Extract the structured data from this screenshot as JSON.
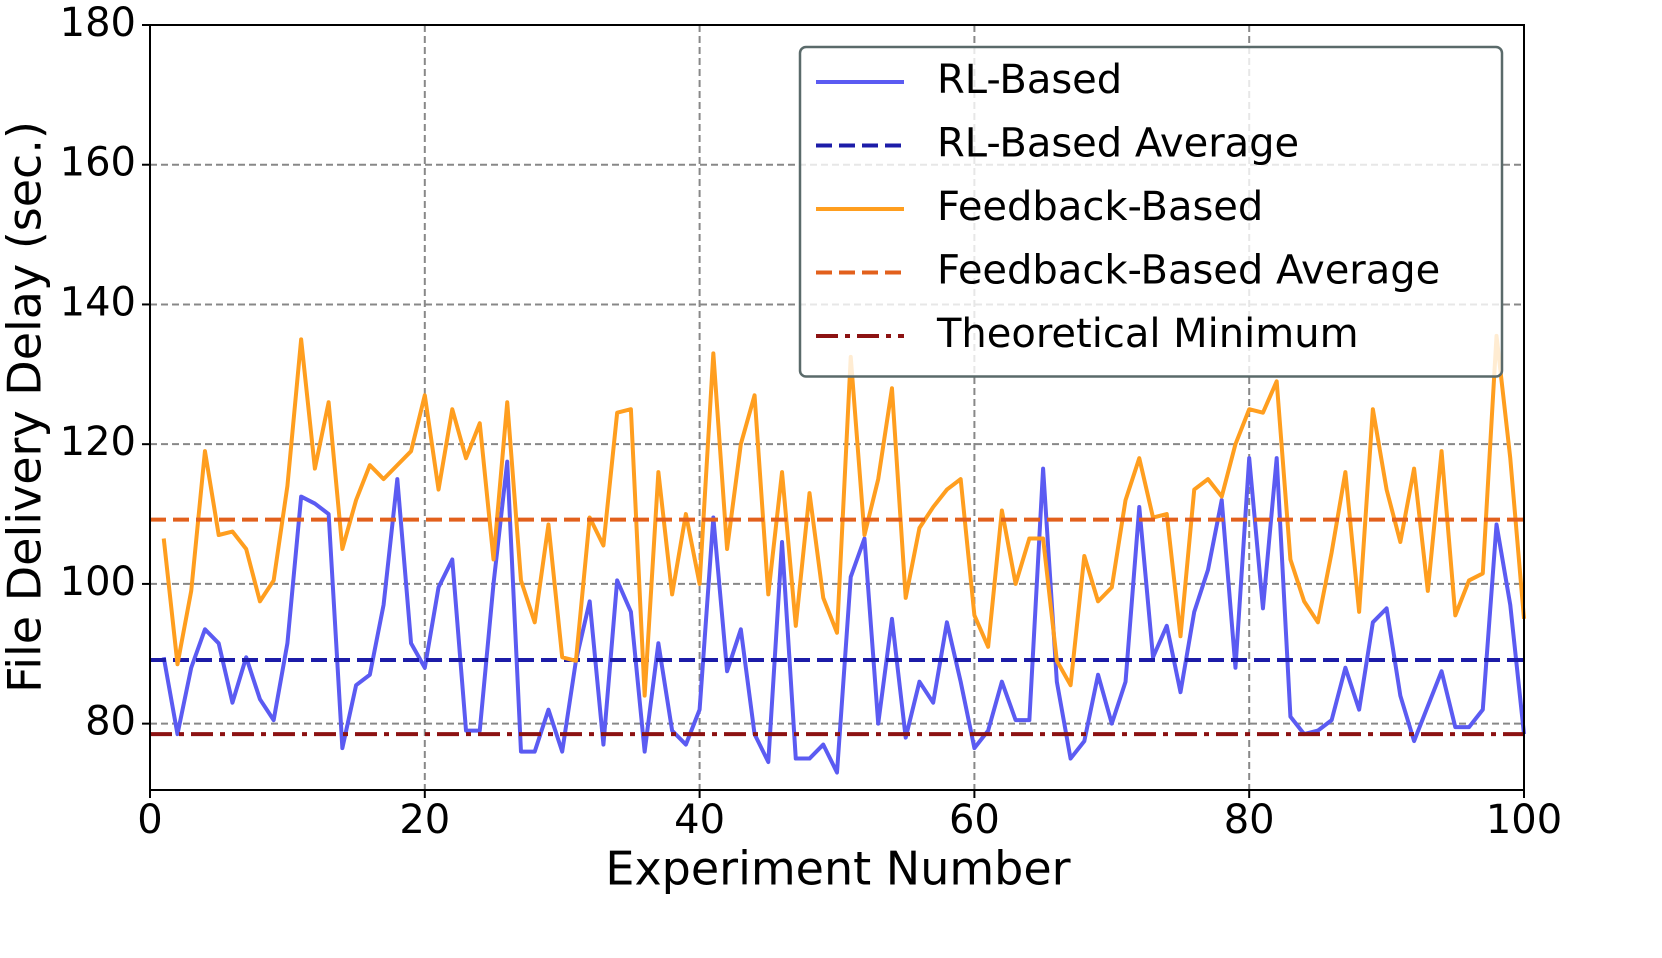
{
  "chart_data": {
    "type": "line",
    "xlabel": "Experiment Number",
    "ylabel": "File Delivery Delay (sec.)",
    "xlim": [
      0,
      100
    ],
    "ylim": [
      70.5,
      180
    ],
    "xticks": [
      0,
      20,
      40,
      60,
      80,
      100
    ],
    "yticks": [
      80,
      100,
      120,
      140,
      160,
      180
    ],
    "grid": true,
    "legend": "upper right",
    "x": [
      1,
      2,
      3,
      4,
      5,
      6,
      7,
      8,
      9,
      10,
      11,
      12,
      13,
      14,
      15,
      16,
      17,
      18,
      19,
      20,
      21,
      22,
      23,
      24,
      25,
      26,
      27,
      28,
      29,
      30,
      31,
      32,
      33,
      34,
      35,
      36,
      37,
      38,
      39,
      40,
      41,
      42,
      43,
      44,
      45,
      46,
      47,
      48,
      49,
      50,
      51,
      52,
      53,
      54,
      55,
      56,
      57,
      58,
      59,
      60,
      61,
      62,
      63,
      64,
      65,
      66,
      67,
      68,
      69,
      70,
      71,
      72,
      73,
      74,
      75,
      76,
      77,
      78,
      79,
      80,
      81,
      82,
      83,
      84,
      85,
      86,
      87,
      88,
      89,
      90,
      91,
      92,
      93,
      94,
      95,
      96,
      97,
      98,
      99,
      100
    ],
    "series": [
      {
        "name": "RL-Based",
        "color": "#5b5bf2",
        "style": "solid",
        "values": [
          89.5,
          78.5,
          88,
          93.5,
          91.5,
          83,
          89.5,
          83.5,
          80.5,
          91.5,
          112.5,
          111.5,
          110,
          76.5,
          85.5,
          87,
          97,
          115,
          91.5,
          88,
          99.5,
          103.5,
          79,
          79,
          100,
          117.5,
          76,
          76,
          82,
          76,
          89,
          97.5,
          77,
          100.5,
          96,
          76,
          91.5,
          79,
          77,
          82,
          109.5,
          87.5,
          93.5,
          78.5,
          74.5,
          106,
          75,
          75,
          77,
          73,
          101,
          106.5,
          80,
          95,
          78,
          86,
          83,
          94.5,
          86,
          76.5,
          79,
          86,
          80.5,
          80.5,
          116.5,
          86,
          75,
          77.5,
          87,
          80,
          86,
          111,
          89.5,
          94,
          84.5,
          96,
          102,
          112,
          88,
          118,
          96.5,
          118,
          81,
          78.5,
          79,
          80.5,
          88,
          82,
          94.5,
          96.5,
          84,
          77.5,
          82.5,
          87.5,
          79.5,
          79.5,
          82,
          108.5,
          97,
          78.5
        ]
      },
      {
        "name": "RL-Based Average",
        "color": "#1c1ca8",
        "style": "dashed",
        "value": 89.1
      },
      {
        "name": "Feedback-Based",
        "color": "#ff9e1f",
        "style": "solid",
        "values": [
          106.5,
          88.5,
          99,
          119,
          107,
          107.5,
          105,
          97.5,
          100.5,
          114,
          135,
          116.5,
          126,
          105,
          112,
          117,
          115,
          117,
          119,
          127,
          113.5,
          125,
          118,
          123,
          103.5,
          126,
          100.5,
          94.5,
          108.5,
          89.5,
          89,
          109.5,
          105.5,
          124.5,
          125,
          84,
          116,
          98.5,
          110,
          100,
          133,
          105,
          120,
          127,
          98.5,
          116,
          94,
          113,
          98,
          93,
          132.5,
          107,
          115,
          128,
          98,
          108,
          111,
          113.5,
          115,
          95.5,
          91,
          110.5,
          100,
          106.5,
          106.5,
          89,
          85.5,
          104,
          97.5,
          99.5,
          112,
          118,
          109.5,
          110,
          92.5,
          113.5,
          115,
          112.5,
          120,
          125,
          124.5,
          129,
          103.5,
          97.5,
          94.5,
          104.5,
          116,
          96,
          125,
          113.5,
          106,
          116.5,
          99,
          119,
          95.5,
          100.5,
          101.5,
          135.5,
          118,
          95
        ]
      },
      {
        "name": "Feedback-Based Average",
        "color": "#e2601c",
        "style": "dashed",
        "value": 109.2
      },
      {
        "name": "Theoretical Minimum",
        "color": "#8c1212",
        "style": "dashdot",
        "value": 78.5
      }
    ]
  }
}
